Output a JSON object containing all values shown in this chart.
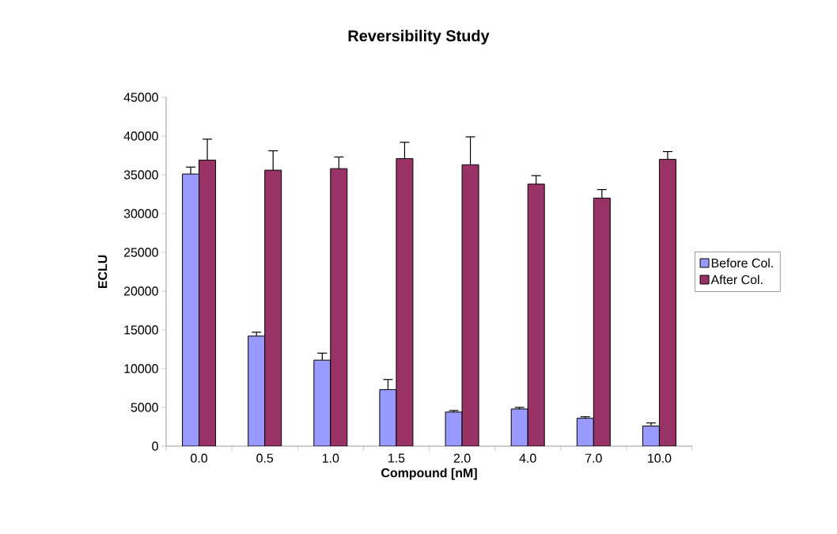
{
  "chart_data": {
    "type": "bar",
    "title": "Reversibility Study",
    "xlabel": "Compound [nM]",
    "ylabel": "ECLU",
    "categories": [
      "0.0",
      "0.5",
      "1.0",
      "1.5",
      "2.0",
      "4.0",
      "7.0",
      "10.0"
    ],
    "series": [
      {
        "name": "Before Col.",
        "color": "#9999ff",
        "values": [
          35100,
          14200,
          11100,
          7300,
          4400,
          4800,
          3600,
          2600
        ],
        "errors": [
          900,
          500,
          900,
          1300,
          200,
          200,
          200,
          400
        ]
      },
      {
        "name": "After Col.",
        "color": "#993366",
        "values": [
          36900,
          35600,
          35800,
          37100,
          36300,
          33800,
          32000,
          37000
        ],
        "errors": [
          2700,
          2500,
          1500,
          2100,
          3600,
          1100,
          1100,
          1000
        ]
      }
    ],
    "ylim": [
      0,
      45000
    ],
    "yticks": [
      0,
      5000,
      10000,
      15000,
      20000,
      25000,
      30000,
      35000,
      40000,
      45000
    ],
    "legend": "right",
    "grid": false
  }
}
